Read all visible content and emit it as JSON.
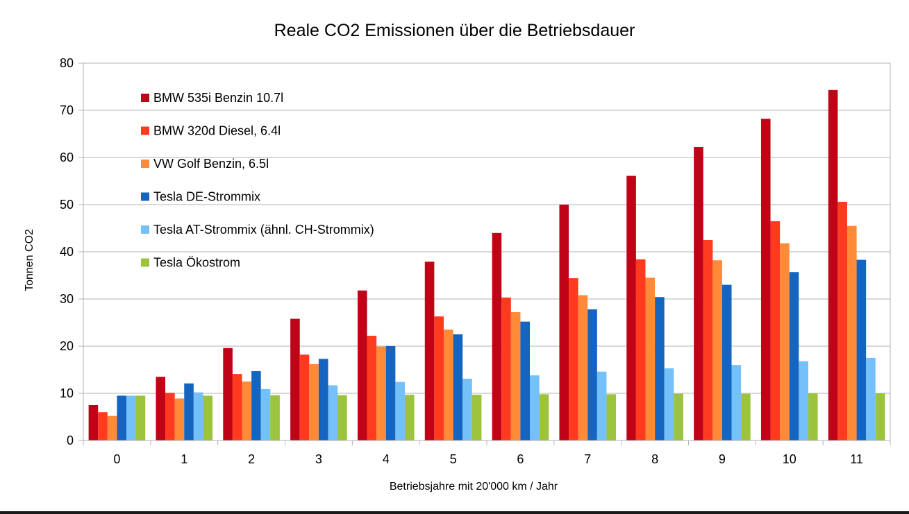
{
  "chart_data": {
    "type": "bar",
    "title": "Reale CO2 Emissionen über die Betriebsdauer",
    "xlabel": "Betriebsjahre mit 20'000 km / Jahr",
    "ylabel": "Tonnen CO2",
    "ylim": [
      0,
      80
    ],
    "yticks": [
      "0",
      "10",
      "20",
      "30",
      "40",
      "50",
      "60",
      "70",
      "80"
    ],
    "grid": true,
    "legend_position": "top-left",
    "categories": [
      "0",
      "1",
      "2",
      "3",
      "4",
      "5",
      "6",
      "7",
      "8",
      "9",
      "10",
      "11"
    ],
    "series": [
      {
        "name": "BMW 535i Benzin 10.7l",
        "color": "#c00418",
        "values": [
          7.5,
          13.5,
          19.6,
          25.8,
          31.8,
          37.9,
          44.0,
          50.0,
          56.1,
          62.2,
          68.2,
          74.3
        ]
      },
      {
        "name": "BMW 320d Diesel, 6.4l",
        "color": "#ff3a1f",
        "values": [
          6.0,
          10.1,
          14.1,
          18.2,
          22.2,
          26.3,
          30.3,
          34.4,
          38.4,
          42.5,
          46.5,
          50.6
        ]
      },
      {
        "name": "VW Golf Benzin, 6.5l",
        "color": "#ff8a38",
        "values": [
          5.2,
          8.9,
          12.5,
          16.2,
          19.9,
          23.5,
          27.2,
          30.8,
          34.5,
          38.2,
          41.8,
          45.5
        ]
      },
      {
        "name": "Tesla DE-Strommix",
        "color": "#1565c0",
        "values": [
          9.5,
          12.1,
          14.7,
          17.3,
          20.0,
          22.5,
          25.2,
          27.8,
          30.4,
          33.0,
          35.7,
          38.3
        ]
      },
      {
        "name": "Tesla AT-Strommix (ähnl. CH-Strommix)",
        "color": "#74c0f8",
        "values": [
          9.5,
          10.2,
          10.9,
          11.7,
          12.4,
          13.1,
          13.8,
          14.6,
          15.3,
          16.0,
          16.8,
          17.5
        ]
      },
      {
        "name": "Tesla Ökostrom",
        "color": "#9bc43c",
        "values": [
          9.5,
          9.5,
          9.6,
          9.6,
          9.7,
          9.7,
          9.8,
          9.8,
          9.9,
          9.9,
          10.0,
          10.0
        ]
      }
    ]
  }
}
